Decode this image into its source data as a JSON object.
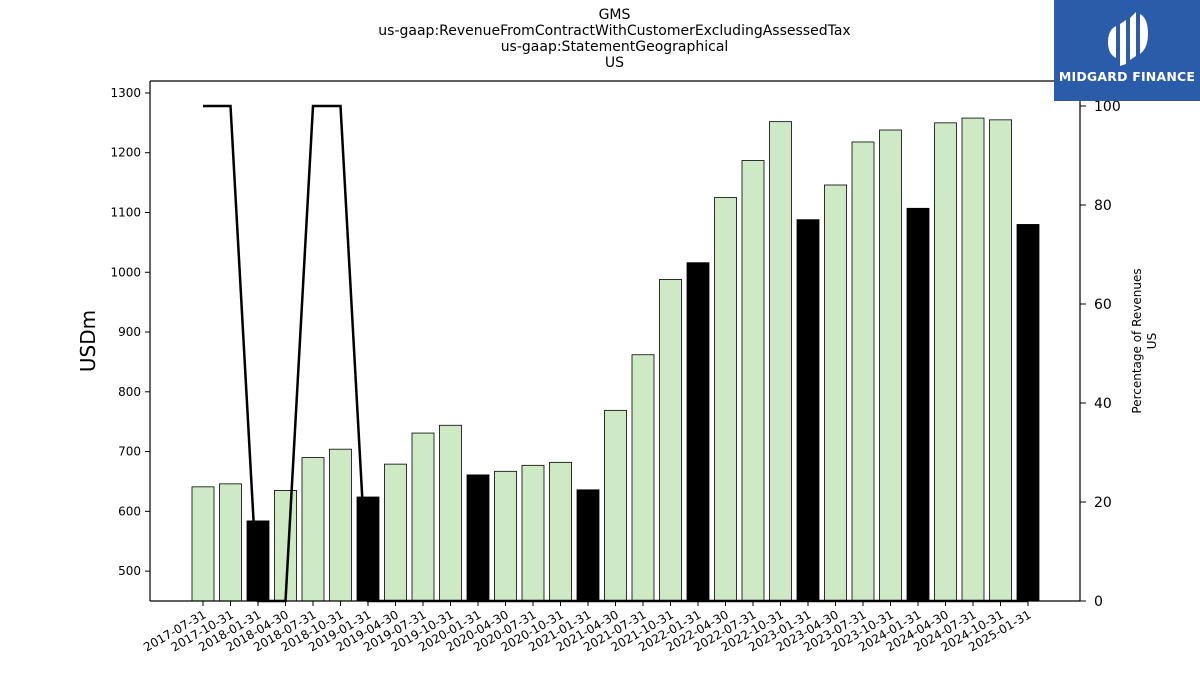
{
  "chart_data": {
    "type": "bar",
    "title_lines": [
      "GMS",
      "us-gaap:RevenueFromContractWithCustomerExcludingAssessedTax",
      "us-gaap:StatementGeographical",
      "US"
    ],
    "ylabel": "USDm",
    "y2label_lines": [
      "Percentage of Revenues",
      "US"
    ],
    "ylim": [
      450,
      1320
    ],
    "y2lim": [
      0,
      100
    ],
    "yticks": [
      500,
      600,
      700,
      800,
      900,
      1000,
      1100,
      1200,
      1300
    ],
    "y2ticks": [
      0,
      20,
      40,
      60,
      80,
      100
    ],
    "categories": [
      "2017-07-31",
      "2017-10-31",
      "2018-01-31",
      "2018-04-30",
      "2018-07-31",
      "2018-10-31",
      "2019-01-31",
      "2019-04-30",
      "2019-07-31",
      "2019-10-31",
      "2020-01-31",
      "2020-04-30",
      "2020-07-31",
      "2020-10-31",
      "2021-01-31",
      "2021-04-30",
      "2021-07-31",
      "2021-10-31",
      "2022-01-31",
      "2022-04-30",
      "2022-07-31",
      "2022-10-31",
      "2023-01-31",
      "2023-04-30",
      "2023-07-31",
      "2023-10-31",
      "2024-01-31",
      "2024-04-30",
      "2024-07-31",
      "2024-10-31",
      "2025-01-31"
    ],
    "series": [
      {
        "type": "bar",
        "values": [
          641,
          646,
          584,
          635,
          690,
          704,
          624,
          679,
          731,
          744,
          661,
          667,
          677,
          682,
          636,
          769,
          862,
          988,
          1016,
          1125,
          1187,
          1252,
          1088,
          1146,
          1218,
          1238,
          1107,
          1250,
          1258,
          1255,
          1080
        ],
        "highlight": [
          false,
          false,
          true,
          false,
          false,
          false,
          true,
          false,
          false,
          false,
          true,
          false,
          false,
          false,
          true,
          false,
          false,
          false,
          true,
          false,
          false,
          false,
          true,
          false,
          false,
          false,
          true,
          false,
          false,
          false,
          true
        ],
        "color": "#cdeac5",
        "highlight_color": "#000000"
      },
      {
        "type": "line",
        "axis": "right",
        "values": [
          100,
          100,
          0,
          0,
          100,
          100,
          0,
          0,
          0,
          0,
          0,
          0,
          0,
          0,
          0,
          0,
          0,
          0,
          0,
          0,
          0,
          0,
          0,
          0,
          0,
          0,
          0,
          0,
          0,
          0,
          0
        ],
        "color": "#000000"
      }
    ],
    "grid": false
  },
  "logo": {
    "text": "MIDGARD FINANCE",
    "background": "#2a5caa"
  }
}
